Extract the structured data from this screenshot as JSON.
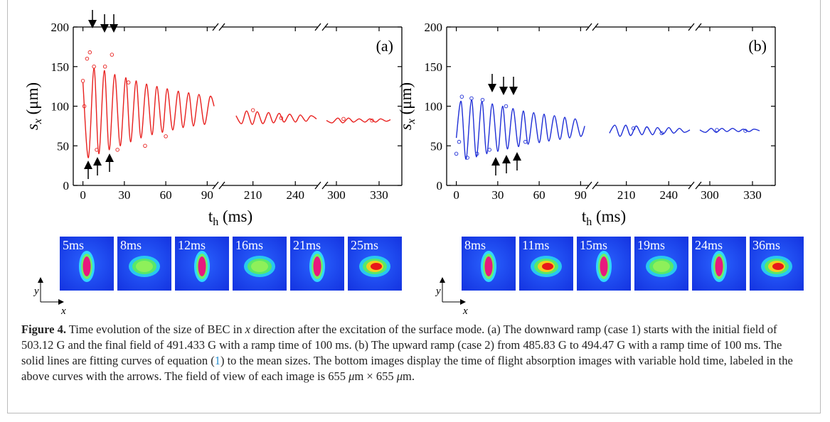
{
  "chart_data": [
    {
      "type": "line",
      "panel_label": "(a)",
      "color": "#e8201e",
      "ylim": [
        0,
        200
      ],
      "yticks": [
        0,
        50,
        100,
        150,
        200
      ],
      "ylabel": {
        "symbol": "s",
        "sub": "x",
        "unit": " (μm)"
      },
      "xlabel": {
        "symbol": "t",
        "sub": "h",
        "unit": " (ms)"
      },
      "x_segments": [
        {
          "xlim": [
            -7,
            96
          ],
          "xticks": [
            0,
            30,
            60,
            90
          ],
          "x": [
            0,
            4,
            8,
            11.5,
            15.5,
            19,
            23,
            27,
            31,
            34.5,
            38.5,
            42,
            46,
            50,
            53.5,
            57.5,
            61,
            65,
            69,
            72.5,
            76.5,
            80,
            84,
            88,
            92,
            95
          ],
          "values": [
            130,
            35,
            148,
            40,
            145,
            45,
            140,
            50,
            136,
            55,
            132,
            60,
            128,
            64,
            125,
            67,
            122,
            70,
            119,
            73,
            117,
            75,
            115,
            77,
            112,
            100
          ]
        },
        {
          "xlim": [
            188,
            256
          ],
          "xticks": [
            210,
            240
          ],
          "x": [
            198,
            202,
            205.5,
            209.5,
            213,
            217,
            221,
            224.5,
            228.5,
            232,
            236,
            240,
            243.5,
            247.5,
            251,
            255
          ],
          "values": [
            88,
            78,
            94,
            77,
            93,
            78,
            92,
            79,
            91,
            80,
            90,
            80,
            89,
            81,
            88,
            84
          ]
        },
        {
          "xlim": [
            292,
            346
          ],
          "xticks": [
            300,
            330
          ],
          "x": [
            293,
            297,
            301,
            304.5,
            308.5,
            312,
            316,
            320,
            323.5,
            327.5,
            331,
            335,
            338
          ],
          "values": [
            82,
            79,
            85,
            79,
            85,
            80,
            84,
            80,
            84,
            80,
            84,
            81,
            83
          ]
        }
      ],
      "points": {
        "x": [
          0,
          1,
          3,
          5,
          8,
          10,
          16,
          21,
          25,
          33,
          45,
          60,
          210,
          230,
          305,
          325
        ],
        "values": [
          132,
          100,
          160,
          168,
          150,
          45,
          150,
          165,
          45,
          130,
          50,
          62,
          95,
          85,
          84,
          82
        ]
      },
      "images": [
        "5ms",
        "8ms",
        "12ms",
        "16ms",
        "21ms",
        "25ms"
      ]
    },
    {
      "type": "line",
      "panel_label": "(b)",
      "color": "#1f2fd6",
      "ylim": [
        0,
        200
      ],
      "yticks": [
        0,
        50,
        100,
        150,
        200
      ],
      "ylabel": {
        "symbol": "s",
        "sub": "x",
        "unit": " (μm)"
      },
      "xlabel": {
        "symbol": "t",
        "sub": "h",
        "unit": " (ms)"
      },
      "x_segments": [
        {
          "xlim": [
            -7,
            96
          ],
          "xticks": [
            0,
            30,
            60,
            90
          ],
          "x": [
            0,
            3.5,
            7,
            11,
            14.5,
            18.5,
            22,
            26,
            30,
            33.5,
            37,
            41,
            45,
            48.5,
            52,
            56,
            60,
            63.5,
            67,
            71,
            75,
            78.5,
            82,
            86,
            90,
            93
          ],
          "values": [
            60,
            106,
            33,
            108,
            36,
            106,
            40,
            103,
            43,
            100,
            46,
            97,
            49,
            94,
            52,
            92,
            54,
            90,
            56,
            88,
            58,
            86,
            60,
            84,
            62,
            75
          ]
        },
        {
          "xlim": [
            188,
            256
          ],
          "xticks": [
            210,
            240
          ],
          "x": [
            198,
            202,
            205.5,
            209.5,
            213,
            217,
            221,
            224.5,
            228.5,
            232,
            236,
            240,
            243.5,
            247.5,
            251,
            255
          ],
          "values": [
            66,
            76,
            62,
            76,
            63,
            75,
            64,
            74,
            64,
            73,
            65,
            73,
            66,
            72,
            67,
            70
          ]
        },
        {
          "xlim": [
            292,
            346
          ],
          "xticks": [
            300,
            330
          ],
          "x": [
            293,
            297,
            301,
            304.5,
            308.5,
            312,
            316,
            320,
            323.5,
            327.5,
            331,
            335
          ],
          "values": [
            70,
            67,
            72,
            67,
            72,
            68,
            72,
            68,
            71,
            68,
            71,
            69
          ]
        }
      ],
      "points": {
        "x": [
          0,
          2,
          4,
          8,
          11,
          15,
          19,
          24,
          36,
          50,
          215,
          235,
          305,
          325
        ],
        "values": [
          40,
          55,
          112,
          35,
          110,
          40,
          108,
          45,
          100,
          55,
          72,
          66,
          70,
          69
        ]
      },
      "images": [
        "8ms",
        "11ms",
        "15ms",
        "19ms",
        "24ms",
        "36ms"
      ]
    }
  ],
  "image_axes": {
    "x": "x",
    "y": "y"
  },
  "caption": {
    "label": "Figure 4.",
    "parts": [
      " Time evolution of the size of BEC in ",
      "x",
      " direction after the excitation of the surface mode. (a) The downward ramp (case 1) starts with the initial field of 503.12 G and the final field of 491.433 G with a ramp time of 100 ms. (b) The upward ramp (case 2) from 485.83 G to 494.47 G with a ramp time of 100 ms. The solid lines are fitting curves of equation (",
      "1",
      ") to the mean sizes. The bottom images display the time of flight absorption images with variable hold time, labeled in the above curves with the arrows. The field of view of each image is 655 ",
      "μ",
      "m × 655 ",
      "μ",
      "m."
    ]
  }
}
